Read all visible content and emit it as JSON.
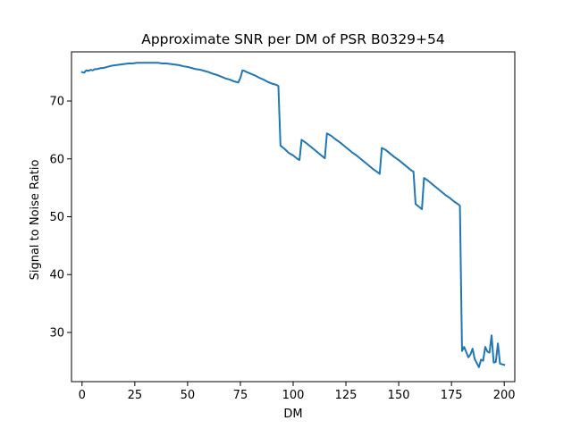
{
  "chart_data": {
    "type": "line",
    "title": "Approximate SNR per DM of PSR B0329+54",
    "xlabel": "DM",
    "ylabel": "Signal to Noise Ratio",
    "xlim": [
      -5,
      205
    ],
    "ylim": [
      21.5,
      78.5
    ],
    "xticks": [
      0,
      25,
      50,
      75,
      100,
      125,
      150,
      175,
      200
    ],
    "yticks": [
      30,
      40,
      50,
      60,
      70
    ],
    "grid": false,
    "legend": "none",
    "line_color": "#1f77b4",
    "series": [
      {
        "x": [
          0,
          1,
          2,
          3,
          4,
          5,
          6,
          7,
          8,
          9,
          10,
          12,
          14,
          16,
          18,
          20,
          22,
          24,
          26,
          28,
          30,
          32,
          34,
          36,
          38,
          40,
          42,
          44,
          46,
          48,
          50,
          52,
          54,
          56,
          58,
          60,
          62,
          64,
          66,
          68,
          70,
          72,
          74,
          75,
          76,
          77,
          78,
          80,
          82,
          84,
          86,
          88,
          90,
          92,
          93,
          94,
          96,
          98,
          100,
          102,
          103,
          104,
          106,
          108,
          110,
          112,
          114,
          115,
          116,
          118,
          120,
          122,
          124,
          126,
          128,
          130,
          132,
          134,
          136,
          138,
          140,
          141,
          142,
          144,
          146,
          148,
          150,
          152,
          154,
          156,
          157,
          158,
          160,
          161,
          162,
          164,
          166,
          168,
          170,
          172,
          174,
          176,
          178,
          179,
          180,
          181,
          182,
          183,
          184,
          185,
          186,
          187,
          188,
          189,
          190,
          191,
          192,
          193,
          194,
          195,
          196,
          197,
          198,
          199,
          200
        ],
        "values": [
          75.0,
          74.9,
          75.3,
          75.2,
          75.4,
          75.3,
          75.5,
          75.5,
          75.6,
          75.7,
          75.7,
          75.9,
          76.1,
          76.2,
          76.3,
          76.4,
          76.5,
          76.5,
          76.6,
          76.6,
          76.6,
          76.6,
          76.6,
          76.6,
          76.5,
          76.5,
          76.4,
          76.3,
          76.2,
          76.0,
          75.9,
          75.7,
          75.5,
          75.4,
          75.2,
          75.0,
          74.7,
          74.5,
          74.2,
          73.9,
          73.7,
          73.4,
          73.2,
          74.0,
          75.3,
          75.2,
          75.0,
          74.7,
          74.4,
          74.0,
          73.7,
          73.3,
          73.0,
          72.8,
          72.6,
          62.3,
          61.7,
          61.0,
          60.6,
          60.0,
          59.8,
          63.3,
          62.8,
          62.2,
          61.6,
          61.0,
          60.4,
          60.1,
          64.4,
          64.0,
          63.4,
          62.9,
          62.3,
          61.7,
          61.1,
          60.6,
          60.0,
          59.4,
          58.8,
          58.2,
          57.7,
          57.4,
          61.9,
          61.5,
          60.9,
          60.3,
          59.8,
          59.2,
          58.6,
          58.0,
          57.8,
          52.2,
          51.6,
          51.3,
          56.7,
          56.2,
          55.6,
          55.0,
          54.4,
          53.8,
          53.3,
          52.7,
          52.2,
          51.9,
          26.8,
          27.5,
          26.6,
          25.7,
          26.2,
          27.2,
          25.4,
          24.7,
          24.0,
          25.3,
          25.1,
          27.5,
          26.7,
          26.5,
          29.5,
          24.8,
          24.9,
          28.1,
          24.6,
          24.5,
          24.4
        ]
      }
    ]
  }
}
